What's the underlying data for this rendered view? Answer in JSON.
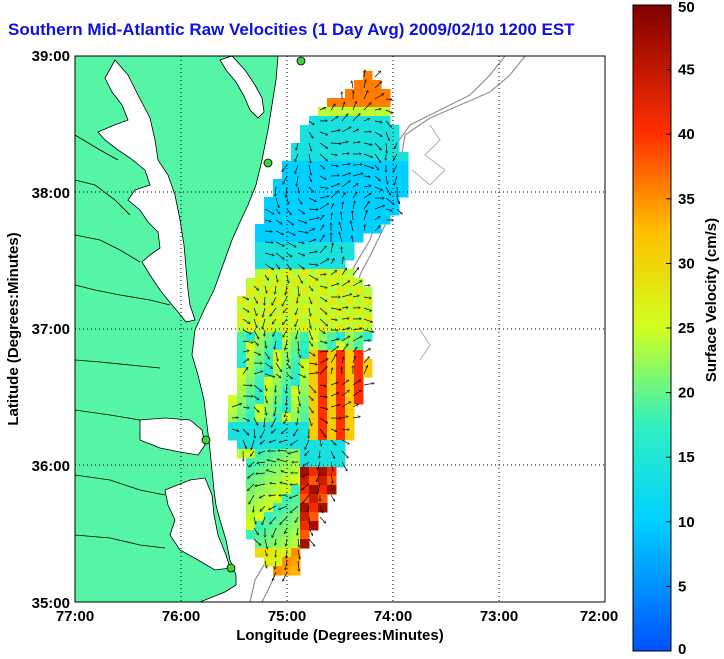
{
  "title": "Southern Mid-Atlantic Raw Velocities (1 Day Avg) 2009/02/10 1200 EST",
  "xaxis": {
    "label": "Longitude (Degrees:Minutes)",
    "ticks": [
      "77:00",
      "76:00",
      "75:00",
      "74:00",
      "73:00",
      "72:00"
    ]
  },
  "yaxis": {
    "label": "Latitude (Degrees:Minutes)",
    "ticks": [
      "39:00",
      "38:00",
      "37:00",
      "36:00",
      "35:00"
    ]
  },
  "colorbar": {
    "label": "Surface Velocity (cm/s)",
    "ticks": [
      "50",
      "45",
      "40",
      "35",
      "30",
      "25",
      "20",
      "15",
      "10",
      "5",
      "0"
    ],
    "min": 0,
    "max": 50
  },
  "map": {
    "lon_range": [
      -77,
      -72
    ],
    "lat_range": [
      35,
      39
    ],
    "land_color": "#55f5a5",
    "grid": "dotted",
    "stations": 4
  }
}
